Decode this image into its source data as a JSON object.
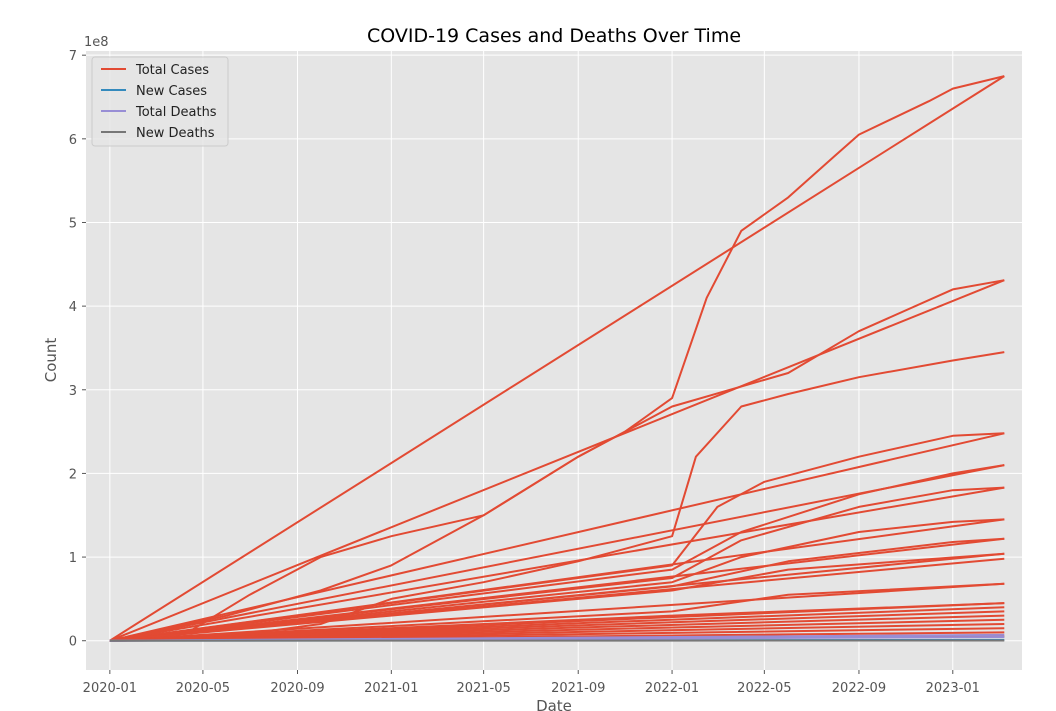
{
  "chart_data": {
    "type": "line",
    "title": "COVID-19 Cases and Deaths Over Time",
    "xlabel": "Date",
    "ylabel": "Count",
    "y_offset_label": "1e8",
    "y_scale_factor": 100000000,
    "xlim": [
      "2019-12-01",
      "2023-04-01"
    ],
    "ylim": [
      -0.35,
      7.05
    ],
    "x_ticks": [
      "2020-01",
      "2020-05",
      "2020-09",
      "2021-01",
      "2021-05",
      "2021-09",
      "2022-01",
      "2022-05",
      "2022-09",
      "2023-01"
    ],
    "y_ticks": [
      0,
      1,
      2,
      3,
      4,
      5,
      6,
      7
    ],
    "grid": true,
    "style": "ggplot",
    "legend_position": "top-left",
    "legend": [
      "Total Cases",
      "New Cases",
      "Total Deaths",
      "New Deaths"
    ],
    "colors": {
      "Total Cases": "#E24A33",
      "New Cases": "#348ABD",
      "Total Deaths": "#988ED5",
      "New Deaths": "#777777"
    },
    "series": [
      {
        "name": "Total Cases",
        "color": "#E24A33",
        "lines": [
          [
            [
              "2020-01-01",
              0
            ],
            [
              "2023-03-09",
              6.75
            ]
          ],
          [
            [
              "2020-01-01",
              0
            ],
            [
              "2020-04-15",
              0.12
            ],
            [
              "2020-07-01",
              0.55
            ],
            [
              "2020-10-01",
              1.0
            ],
            [
              "2021-01-01",
              1.25
            ],
            [
              "2021-05-01",
              1.5
            ],
            [
              "2021-09-01",
              2.2
            ],
            [
              "2021-11-01",
              2.5
            ],
            [
              "2022-01-01",
              2.9
            ],
            [
              "2022-02-15",
              4.1
            ],
            [
              "2022-04-01",
              4.9
            ],
            [
              "2022-06-01",
              5.3
            ],
            [
              "2022-08-01",
              5.8
            ],
            [
              "2022-09-01",
              6.05
            ],
            [
              "2022-12-01",
              6.45
            ],
            [
              "2023-01-01",
              6.6
            ],
            [
              "2023-03-09",
              6.75
            ]
          ],
          [
            [
              "2020-01-01",
              0
            ],
            [
              "2023-03-09",
              4.31
            ]
          ],
          [
            [
              "2020-01-01",
              0
            ],
            [
              "2020-06-01",
              0.3
            ],
            [
              "2020-10-01",
              0.6
            ],
            [
              "2021-01-01",
              0.9
            ],
            [
              "2021-05-01",
              1.5
            ],
            [
              "2021-09-01",
              2.2
            ],
            [
              "2022-01-01",
              2.8
            ],
            [
              "2022-06-01",
              3.2
            ],
            [
              "2022-09-01",
              3.7
            ],
            [
              "2023-01-01",
              4.2
            ],
            [
              "2023-03-09",
              4.31
            ]
          ],
          [
            [
              "2020-01-01",
              0
            ],
            [
              "2023-03-09",
              2.48
            ]
          ],
          [
            [
              "2020-01-01",
              0
            ],
            [
              "2020-06-01",
              0.05
            ],
            [
              "2020-10-01",
              0.2
            ],
            [
              "2021-01-01",
              0.5
            ],
            [
              "2021-05-01",
              0.7
            ],
            [
              "2021-09-01",
              0.95
            ],
            [
              "2022-01-01",
              1.25
            ],
            [
              "2022-02-01",
              2.2
            ],
            [
              "2022-04-01",
              2.8
            ],
            [
              "2022-06-01",
              2.95
            ],
            [
              "2022-09-01",
              3.15
            ],
            [
              "2023-01-01",
              3.35
            ],
            [
              "2023-03-09",
              3.45
            ]
          ],
          [
            [
              "2020-01-01",
              0
            ],
            [
              "2022-01-01",
              0.9
            ],
            [
              "2022-03-01",
              1.6
            ],
            [
              "2022-05-01",
              1.9
            ],
            [
              "2022-09-01",
              2.2
            ],
            [
              "2023-01-01",
              2.45
            ],
            [
              "2023-03-09",
              2.48
            ]
          ],
          [
            [
              "2020-01-01",
              0
            ],
            [
              "2023-03-09",
              2.1
            ]
          ],
          [
            [
              "2020-01-01",
              0
            ],
            [
              "2022-01-01",
              0.85
            ],
            [
              "2022-04-01",
              1.3
            ],
            [
              "2022-09-01",
              1.75
            ],
            [
              "2023-01-01",
              2.0
            ],
            [
              "2023-03-09",
              2.1
            ]
          ],
          [
            [
              "2020-01-01",
              0
            ],
            [
              "2023-03-09",
              1.83
            ]
          ],
          [
            [
              "2020-01-01",
              0
            ],
            [
              "2022-01-01",
              0.75
            ],
            [
              "2022-04-01",
              1.2
            ],
            [
              "2022-09-01",
              1.6
            ],
            [
              "2023-01-01",
              1.8
            ],
            [
              "2023-03-09",
              1.83
            ]
          ],
          [
            [
              "2020-01-01",
              0
            ],
            [
              "2023-03-09",
              1.45
            ]
          ],
          [
            [
              "2020-01-01",
              0
            ],
            [
              "2022-01-01",
              0.7
            ],
            [
              "2022-04-01",
              1.0
            ],
            [
              "2022-09-01",
              1.3
            ],
            [
              "2023-01-01",
              1.42
            ],
            [
              "2023-03-09",
              1.45
            ]
          ],
          [
            [
              "2020-01-01",
              0
            ],
            [
              "2023-03-09",
              1.22
            ]
          ],
          [
            [
              "2020-01-01",
              0
            ],
            [
              "2022-01-01",
              0.65
            ],
            [
              "2022-06-01",
              0.95
            ],
            [
              "2023-01-01",
              1.18
            ],
            [
              "2023-03-09",
              1.22
            ]
          ],
          [
            [
              "2020-01-01",
              0
            ],
            [
              "2023-03-09",
              1.04
            ]
          ],
          [
            [
              "2020-01-01",
              0
            ],
            [
              "2022-01-01",
              0.6
            ],
            [
              "2022-06-01",
              0.85
            ],
            [
              "2023-03-09",
              1.04
            ]
          ],
          [
            [
              "2020-01-01",
              0
            ],
            [
              "2023-03-09",
              0.98
            ]
          ],
          [
            [
              "2020-01-01",
              0
            ],
            [
              "2023-03-09",
              0.68
            ]
          ],
          [
            [
              "2020-01-01",
              0
            ],
            [
              "2022-01-01",
              0.35
            ],
            [
              "2022-06-01",
              0.55
            ],
            [
              "2023-03-09",
              0.68
            ]
          ],
          [
            [
              "2020-01-01",
              0
            ],
            [
              "2023-03-09",
              0.45
            ]
          ],
          [
            [
              "2020-01-01",
              0
            ],
            [
              "2022-01-01",
              0.3
            ],
            [
              "2023-03-09",
              0.45
            ]
          ],
          [
            [
              "2020-01-01",
              0
            ],
            [
              "2023-03-09",
              0.4
            ]
          ],
          [
            [
              "2020-01-01",
              0
            ],
            [
              "2023-03-09",
              0.35
            ]
          ],
          [
            [
              "2020-01-01",
              0
            ],
            [
              "2023-03-09",
              0.3
            ]
          ],
          [
            [
              "2020-01-01",
              0
            ],
            [
              "2023-03-09",
              0.25
            ]
          ],
          [
            [
              "2020-01-01",
              0
            ],
            [
              "2023-03-09",
              0.2
            ]
          ],
          [
            [
              "2020-01-01",
              0
            ],
            [
              "2023-03-09",
              0.15
            ]
          ],
          [
            [
              "2020-01-01",
              0
            ],
            [
              "2023-03-09",
              0.1
            ]
          ],
          [
            [
              "2020-01-01",
              0
            ],
            [
              "2023-03-09",
              0.05
            ]
          ]
        ]
      },
      {
        "name": "New Cases",
        "color": "#348ABD",
        "lines": [
          [
            [
              "2020-01-01",
              0
            ],
            [
              "2023-03-09",
              0.01
            ]
          ]
        ]
      },
      {
        "name": "Total Deaths",
        "color": "#988ED5",
        "lines": [
          [
            [
              "2020-01-01",
              0
            ],
            [
              "2023-03-09",
              0.07
            ]
          ],
          [
            [
              "2020-01-01",
              0
            ],
            [
              "2023-03-09",
              0.045
            ]
          ]
        ]
      },
      {
        "name": "New Deaths",
        "color": "#777777",
        "lines": [
          [
            [
              "2020-01-01",
              0
            ],
            [
              "2023-03-09",
              0.003
            ]
          ]
        ]
      }
    ]
  }
}
